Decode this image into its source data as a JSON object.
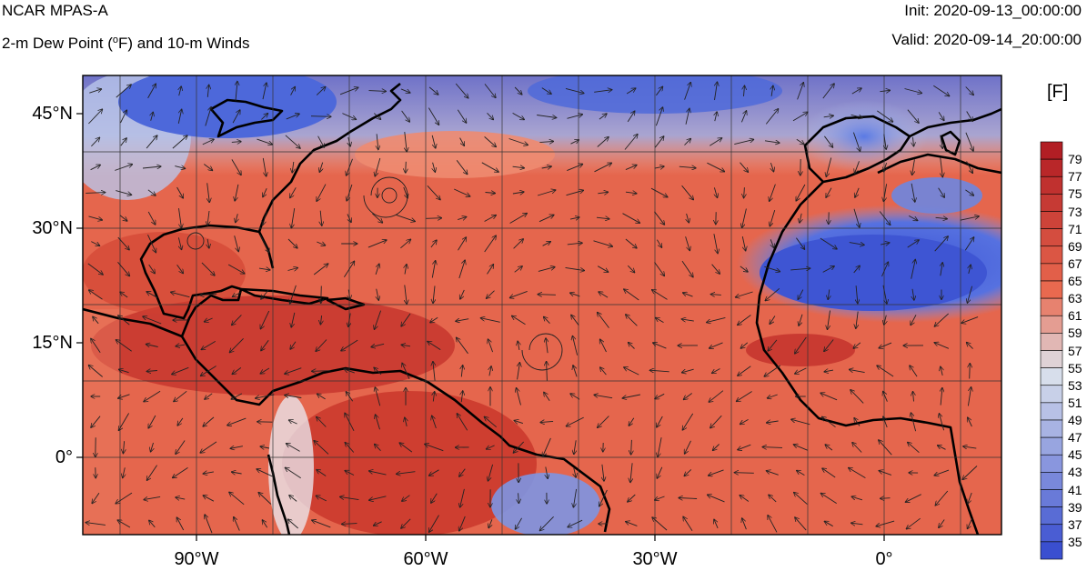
{
  "header": {
    "model": "NCAR MPAS-A",
    "field_prefix": "2-m Dew Point (",
    "field_degree": "o",
    "field_suffix": "F) and 10-m Winds",
    "init": "Init: 2020-09-13_00:00:00",
    "valid": "Valid: 2020-09-14_20:00:00"
  },
  "map": {
    "projection": "cylindrical equidistant",
    "lon_range": [
      -105,
      13
    ],
    "lat_range": [
      -10,
      50
    ],
    "lat_labels": [
      "45°N",
      "30°N",
      "15°N",
      "0°"
    ],
    "lon_labels": [
      "90°W",
      "60°W",
      "30°W",
      "0°"
    ]
  },
  "colorbar": {
    "unit": "[F]",
    "levels": [
      "79",
      "77",
      "75",
      "73",
      "71",
      "69",
      "67",
      "65",
      "63",
      "61",
      "59",
      "57",
      "55",
      "53",
      "51",
      "49",
      "47",
      "45",
      "43",
      "41",
      "39",
      "37",
      "35"
    ],
    "colors": {
      "dry": "#3a4fd0",
      "mid": "#dde3ec",
      "moist": "#e9694f",
      "humid": "#b21e24"
    }
  }
}
